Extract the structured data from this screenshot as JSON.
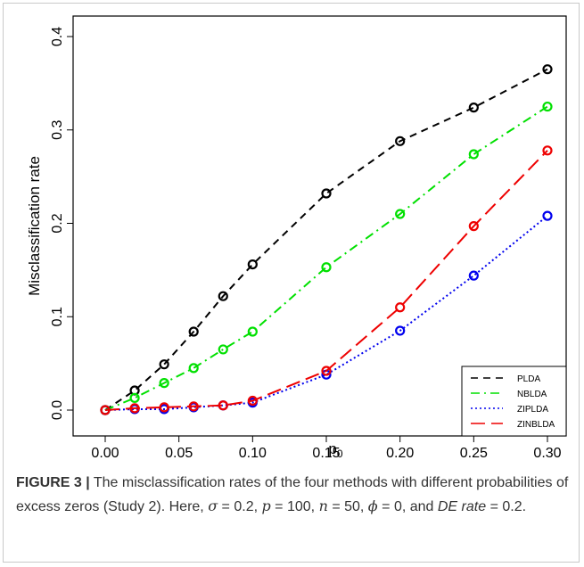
{
  "chart_data": {
    "type": "line",
    "xlabel": "p",
    "xlabel_sub": "0",
    "ylabel": "Misclassification rate",
    "xlim": [
      0,
      0.3
    ],
    "ylim": [
      0,
      0.4
    ],
    "x_ticks": [
      "0.00",
      "0.05",
      "0.10",
      "0.15",
      "0.20",
      "0.25",
      "0.30"
    ],
    "y_ticks": [
      "0.0",
      "0.1",
      "0.2",
      "0.3",
      "0.4"
    ],
    "grid": false,
    "legend_position": "bottom-right",
    "series": [
      {
        "name": "PLDA",
        "color": "#000000",
        "dash": "dashed",
        "x": [
          0.0,
          0.02,
          0.04,
          0.06,
          0.08,
          0.1,
          0.15,
          0.2,
          0.25,
          0.3
        ],
        "values": [
          0.0,
          0.021,
          0.049,
          0.084,
          0.122,
          0.156,
          0.232,
          0.288,
          0.324,
          0.365
        ]
      },
      {
        "name": "NBLDA",
        "color": "#00e000",
        "dash": "dotdash",
        "x": [
          0.0,
          0.02,
          0.04,
          0.06,
          0.08,
          0.1,
          0.15,
          0.2,
          0.25,
          0.3
        ],
        "values": [
          0.0,
          0.013,
          0.029,
          0.045,
          0.065,
          0.084,
          0.153,
          0.21,
          0.274,
          0.325
        ]
      },
      {
        "name": "ZIPLDA",
        "color": "#0000ee",
        "dash": "dotted",
        "x": [
          0.0,
          0.02,
          0.04,
          0.06,
          0.08,
          0.1,
          0.15,
          0.2,
          0.25,
          0.3
        ],
        "values": [
          0.0,
          0.001,
          0.001,
          0.003,
          0.005,
          0.008,
          0.038,
          0.085,
          0.144,
          0.208
        ]
      },
      {
        "name": "ZINBLDA",
        "color": "#ee0000",
        "dash": "longdash",
        "x": [
          0.0,
          0.02,
          0.04,
          0.06,
          0.08,
          0.1,
          0.15,
          0.2,
          0.25,
          0.3
        ],
        "values": [
          0.0,
          0.002,
          0.003,
          0.004,
          0.005,
          0.01,
          0.042,
          0.11,
          0.197,
          0.278
        ]
      }
    ]
  },
  "caption": {
    "label": "FIGURE 3 |",
    "text1": " The misclassification rates of the four methods with different probabilities of excess zeros (Study 2). Here, ",
    "sigma_sym": "σ",
    "sigma_val": " = 0.2, ",
    "p_sym": "p",
    "p_val": " = 100, ",
    "n_sym": "n",
    "n_val": " = 50, ",
    "phi_sym": "ϕ",
    "phi_val": " = 0,",
    "text_and": " and ",
    "de_rate": "DE rate",
    "de_val": " = 0.2."
  }
}
